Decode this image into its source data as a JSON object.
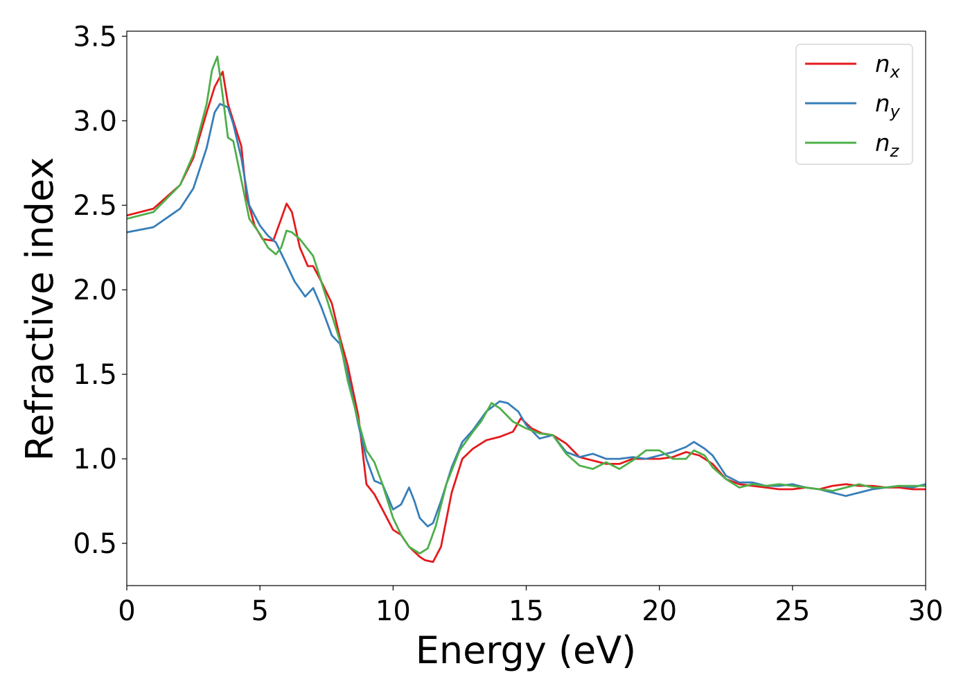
{
  "chart_data": {
    "type": "line",
    "xlabel": "Energy (eV)",
    "ylabel": "Refractive index",
    "xlim": [
      0,
      30
    ],
    "ylim": [
      0.25,
      3.53
    ],
    "xticks": [
      0,
      5,
      10,
      15,
      20,
      25,
      30
    ],
    "yticks": [
      0.5,
      1.0,
      1.5,
      2.0,
      2.5,
      3.0,
      3.5
    ],
    "xtick_labels": [
      "0",
      "5",
      "10",
      "15",
      "20",
      "25",
      "30"
    ],
    "ytick_labels": [
      "0.5",
      "1.0",
      "1.5",
      "2.0",
      "2.5",
      "3.0",
      "3.5"
    ],
    "grid": false,
    "legend_position": "top-right",
    "series": [
      {
        "name": "n",
        "subscript": "x",
        "color": "#e41a1c",
        "x": [
          0,
          1,
          2,
          2.5,
          3,
          3.3,
          3.6,
          3.8,
          4.0,
          4.3,
          4.5,
          4.8,
          5.1,
          5.5,
          5.8,
          6.0,
          6.2,
          6.5,
          6.8,
          7.0,
          7.3,
          7.7,
          8.0,
          8.3,
          8.7,
          9.0,
          9.3,
          9.6,
          10.0,
          10.3,
          10.6,
          11.0,
          11.2,
          11.5,
          11.8,
          12.2,
          12.6,
          13.0,
          13.5,
          14.0,
          14.5,
          14.8,
          15.2,
          15.6,
          16.0,
          16.5,
          17.0,
          17.5,
          18.0,
          18.5,
          19.0,
          19.5,
          20.0,
          20.5,
          21.0,
          21.5,
          22.0,
          22.5,
          23.0,
          23.5,
          24.0,
          24.5,
          25.0,
          25.5,
          26.0,
          26.5,
          27.0,
          27.5,
          28.0,
          28.5,
          29.0,
          29.5,
          30.0
        ],
        "values": [
          2.44,
          2.48,
          2.62,
          2.78,
          3.05,
          3.2,
          3.29,
          3.1,
          3.0,
          2.85,
          2.55,
          2.38,
          2.3,
          2.29,
          2.42,
          2.51,
          2.46,
          2.25,
          2.14,
          2.14,
          2.05,
          1.92,
          1.72,
          1.55,
          1.25,
          0.85,
          0.79,
          0.7,
          0.58,
          0.55,
          0.48,
          0.42,
          0.4,
          0.39,
          0.48,
          0.8,
          1.0,
          1.06,
          1.11,
          1.13,
          1.16,
          1.24,
          1.18,
          1.15,
          1.14,
          1.09,
          1.01,
          0.99,
          0.97,
          0.97,
          1.0,
          1.0,
          1.0,
          1.01,
          1.04,
          1.02,
          0.97,
          0.88,
          0.85,
          0.84,
          0.83,
          0.82,
          0.82,
          0.83,
          0.82,
          0.84,
          0.85,
          0.84,
          0.84,
          0.83,
          0.83,
          0.82,
          0.82
        ]
      },
      {
        "name": "n",
        "subscript": "y",
        "color": "#377eb8",
        "x": [
          0,
          1,
          2,
          2.5,
          3,
          3.3,
          3.5,
          3.8,
          4.0,
          4.3,
          4.6,
          5.0,
          5.3,
          5.6,
          6.0,
          6.3,
          6.7,
          7.0,
          7.3,
          7.7,
          8.0,
          8.3,
          8.7,
          9.0,
          9.3,
          9.6,
          10.0,
          10.3,
          10.6,
          10.8,
          11.0,
          11.3,
          11.5,
          11.8,
          12.2,
          12.6,
          13.0,
          13.5,
          14.0,
          14.3,
          14.7,
          15.0,
          15.5,
          16.0,
          16.5,
          17.0,
          17.5,
          18.0,
          18.5,
          19.0,
          19.5,
          20.0,
          20.5,
          21.0,
          21.3,
          21.7,
          22.0,
          22.5,
          23.0,
          23.5,
          24.0,
          24.5,
          25.0,
          25.5,
          26.0,
          26.5,
          27.0,
          27.5,
          28.0,
          28.5,
          29.0,
          29.5,
          30.0
        ],
        "values": [
          2.34,
          2.37,
          2.48,
          2.6,
          2.84,
          3.05,
          3.1,
          3.08,
          2.98,
          2.78,
          2.5,
          2.38,
          2.32,
          2.28,
          2.15,
          2.05,
          1.96,
          2.01,
          1.9,
          1.73,
          1.68,
          1.5,
          1.2,
          1.0,
          0.87,
          0.85,
          0.7,
          0.73,
          0.83,
          0.75,
          0.65,
          0.6,
          0.62,
          0.75,
          0.95,
          1.1,
          1.17,
          1.28,
          1.34,
          1.33,
          1.28,
          1.2,
          1.12,
          1.14,
          1.04,
          1.01,
          1.03,
          1.0,
          1.0,
          1.01,
          1.0,
          1.02,
          1.04,
          1.07,
          1.1,
          1.06,
          1.02,
          0.9,
          0.86,
          0.86,
          0.84,
          0.84,
          0.85,
          0.83,
          0.82,
          0.8,
          0.78,
          0.8,
          0.82,
          0.83,
          0.84,
          0.83,
          0.85
        ]
      },
      {
        "name": "n",
        "subscript": "z",
        "color": "#4daf4a",
        "x": [
          0,
          1,
          2,
          2.5,
          3,
          3.2,
          3.4,
          3.6,
          3.8,
          4.0,
          4.3,
          4.6,
          5.0,
          5.3,
          5.6,
          5.8,
          6.0,
          6.2,
          6.5,
          7.0,
          7.5,
          8.0,
          8.3,
          8.7,
          9.0,
          9.3,
          9.6,
          10.0,
          10.3,
          10.6,
          11.0,
          11.3,
          11.6,
          12.0,
          12.5,
          13.0,
          13.3,
          13.7,
          14.0,
          14.5,
          15.0,
          15.5,
          16.0,
          16.5,
          17.0,
          17.5,
          18.0,
          18.5,
          19.0,
          19.5,
          20.0,
          20.5,
          21.0,
          21.3,
          21.7,
          22.0,
          22.5,
          23.0,
          23.5,
          24.0,
          24.5,
          25.0,
          25.5,
          26.0,
          26.5,
          27.0,
          27.5,
          28.0,
          28.5,
          29.0,
          29.5,
          30.0
        ],
        "values": [
          2.42,
          2.46,
          2.62,
          2.8,
          3.1,
          3.3,
          3.38,
          3.15,
          2.9,
          2.88,
          2.65,
          2.42,
          2.33,
          2.25,
          2.21,
          2.25,
          2.35,
          2.34,
          2.3,
          2.2,
          1.95,
          1.7,
          1.46,
          1.22,
          1.05,
          0.98,
          0.85,
          0.65,
          0.55,
          0.48,
          0.44,
          0.47,
          0.6,
          0.85,
          1.05,
          1.16,
          1.22,
          1.33,
          1.3,
          1.22,
          1.18,
          1.15,
          1.14,
          1.03,
          0.96,
          0.94,
          0.98,
          0.94,
          0.99,
          1.05,
          1.05,
          1.0,
          1.0,
          1.05,
          1.02,
          0.95,
          0.88,
          0.83,
          0.85,
          0.84,
          0.85,
          0.84,
          0.83,
          0.82,
          0.81,
          0.83,
          0.85,
          0.83,
          0.83,
          0.84,
          0.84,
          0.84
        ]
      }
    ]
  }
}
